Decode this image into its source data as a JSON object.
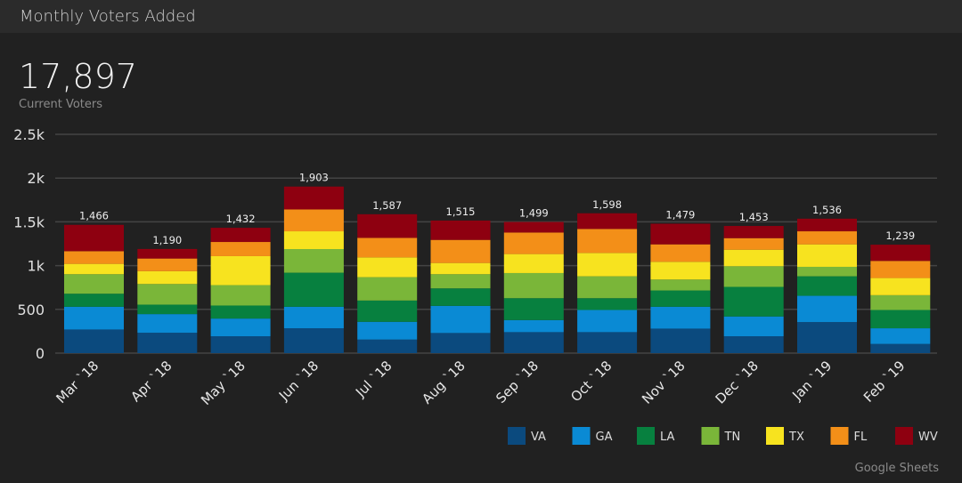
{
  "header": {
    "title": "Monthly Voters Added"
  },
  "scorecard": {
    "value": "17,897",
    "label": "Current Voters"
  },
  "footer": {
    "source": "Google Sheets"
  },
  "chart_data": {
    "type": "bar",
    "stacked": true,
    "categories": [
      "Mar `18",
      "Apr `18",
      "May `18",
      "Jun `18",
      "Jul `18",
      "Aug `18",
      "Sep `18",
      "Oct `18",
      "Nov `18",
      "Dec `18",
      "Jan `19",
      "Feb `19"
    ],
    "totals": [
      1466,
      1190,
      1432,
      1903,
      1587,
      1515,
      1499,
      1598,
      1479,
      1453,
      1536,
      1239
    ],
    "total_labels": [
      "1,466",
      "1,190",
      "1,432",
      "1,903",
      "1,587",
      "1,515",
      "1,499",
      "1,598",
      "1,479",
      "1,453",
      "1,536",
      "1,239"
    ],
    "series": [
      {
        "name": "VA",
        "color": "#0b4a7e",
        "values": [
          270,
          233,
          193,
          284,
          155,
          230,
          240,
          240,
          280,
          193,
          355,
          105
        ]
      },
      {
        "name": "GA",
        "color": "#0a8ad4",
        "values": [
          260,
          213,
          202,
          246,
          203,
          310,
          138,
          253,
          250,
          226,
          300,
          179
        ]
      },
      {
        "name": "LA",
        "color": "#07803f",
        "values": [
          149,
          108,
          149,
          389,
          243,
          200,
          250,
          135,
          186,
          338,
          223,
          209
        ]
      },
      {
        "name": "TN",
        "color": "#7ab639",
        "values": [
          223,
          236,
          233,
          270,
          267,
          162,
          287,
          250,
          125,
          236,
          108,
          169
        ]
      },
      {
        "name": "TX",
        "color": "#f7e31f",
        "values": [
          118,
          146,
          331,
          203,
          226,
          128,
          217,
          267,
          203,
          189,
          257,
          196
        ]
      },
      {
        "name": "FL",
        "color": "#f38f18",
        "values": [
          145,
          145,
          162,
          250,
          223,
          264,
          246,
          274,
          199,
          132,
          149,
          196
        ]
      },
      {
        "name": "WV",
        "color": "#8e0010",
        "values": [
          301,
          109,
          162,
          261,
          270,
          221,
          121,
          179,
          236,
          139,
          144,
          185
        ]
      }
    ],
    "yticks": [
      0,
      500,
      1000,
      1500,
      2000,
      2500
    ],
    "ytick_labels": [
      "0",
      "500",
      "1k",
      "1.5k",
      "2k",
      "2.5k"
    ],
    "ylim": [
      0,
      2500
    ],
    "grid": true,
    "legend": "bottom-right"
  }
}
